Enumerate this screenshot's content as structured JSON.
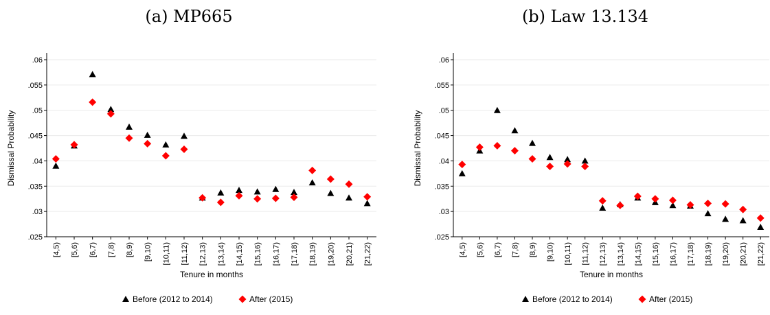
{
  "colors": {
    "before": "#000000",
    "after": "#ff0000"
  },
  "chart_data": [
    {
      "type": "scatter",
      "title": "(a) MP665",
      "xlabel": "Tenure in months",
      "ylabel": "Dismissal Probability",
      "ylim": [
        0.025,
        0.06
      ],
      "yticks": [
        ".025",
        ".03",
        ".035",
        ".04",
        ".045",
        ".05",
        ".055",
        ".06"
      ],
      "categories": [
        "[4,5)",
        "[5,6)",
        "[6,7)",
        "[7,8)",
        "[8,9)",
        "[9,10)",
        "[10,11)",
        "[11,12)",
        "[12,13)",
        "[13,14)",
        "[14,15)",
        "[15,16)",
        "[16,17)",
        "[17,18)",
        "[18,19)",
        "[19,20)",
        "[20,21)",
        "[21,22)"
      ],
      "series": [
        {
          "name": "Before (2012 to 2014)",
          "marker": "triangle",
          "values": [
            0.039,
            0.043,
            0.0571,
            0.0502,
            0.0467,
            0.0451,
            0.0432,
            0.0449,
            0.0327,
            0.0337,
            0.0342,
            0.0339,
            0.0344,
            0.0338,
            0.0357,
            0.0336,
            0.0327,
            0.0316
          ]
        },
        {
          "name": "After (2015)",
          "marker": "diamond",
          "values": [
            0.0404,
            0.0432,
            0.0516,
            0.0493,
            0.0445,
            0.0434,
            0.041,
            0.0423,
            0.0327,
            0.0318,
            0.0331,
            0.0325,
            0.0326,
            0.0328,
            0.0381,
            0.0364,
            0.0354,
            0.0329
          ]
        }
      ],
      "legend": "bottom"
    },
    {
      "type": "scatter",
      "title": "(b) Law 13.134",
      "xlabel": "Tenure in months",
      "ylabel": "Dismissal Probability",
      "ylim": [
        0.025,
        0.06
      ],
      "yticks": [
        ".025",
        ".03",
        ".035",
        ".04",
        ".045",
        ".05",
        ".055",
        ".06"
      ],
      "categories": [
        "[4,5)",
        "[5,6)",
        "[6,7)",
        "[7,8)",
        "[8,9)",
        "[9,10)",
        "[10,11)",
        "[11,12)",
        "[12,13)",
        "[13,14)",
        "[14,15)",
        "[15,16)",
        "[16,17)",
        "[17,18)",
        "[18,19)",
        "[19,20)",
        "[20,21)",
        "[21,22)"
      ],
      "series": [
        {
          "name": "Before (2012 to 2014)",
          "marker": "triangle",
          "values": [
            0.0375,
            0.042,
            0.05,
            0.046,
            0.0435,
            0.0407,
            0.0403,
            0.04,
            0.0307,
            0.0314,
            0.0327,
            0.0318,
            0.0312,
            0.0311,
            0.0296,
            0.0285,
            0.0282,
            0.0269
          ]
        },
        {
          "name": "After (2015)",
          "marker": "diamond",
          "values": [
            0.0393,
            0.0427,
            0.043,
            0.042,
            0.0404,
            0.0389,
            0.0394,
            0.0389,
            0.0321,
            0.0312,
            0.033,
            0.0325,
            0.0322,
            0.0313,
            0.0316,
            0.0315,
            0.0304,
            0.0287
          ]
        }
      ],
      "legend": "bottom"
    }
  ]
}
